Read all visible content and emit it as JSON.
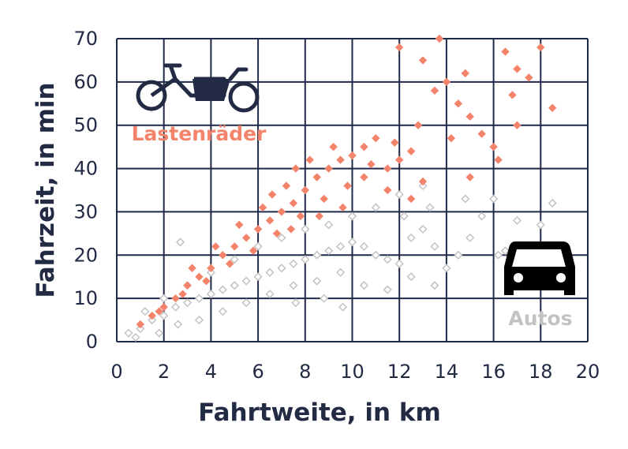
{
  "chart_data": {
    "type": "scatter",
    "title": "",
    "xlabel": "Fahrtweite, in km",
    "ylabel": "Fahrzeit, in min",
    "xlim": [
      0,
      20
    ],
    "ylim": [
      0,
      70
    ],
    "x_ticks": [
      0,
      2,
      4,
      6,
      8,
      10,
      12,
      14,
      16,
      18,
      20
    ],
    "y_ticks": [
      0,
      10,
      20,
      30,
      40,
      50,
      60,
      70
    ],
    "grid": true,
    "legend": "inline labels with icons (cargo bike top-left, car right)",
    "series": [
      {
        "name": "Lastenräder",
        "color": "#f4836b",
        "marker": "filled-diamond",
        "icon": "cargo-bike-icon",
        "points": [
          [
            1.0,
            4
          ],
          [
            1.5,
            6
          ],
          [
            2.0,
            8
          ],
          [
            2.5,
            10
          ],
          [
            3.0,
            13
          ],
          [
            3.5,
            15
          ],
          [
            4.0,
            17
          ],
          [
            4.5,
            20
          ],
          [
            5.0,
            22
          ],
          [
            5.5,
            24
          ],
          [
            6.0,
            26
          ],
          [
            6.5,
            28
          ],
          [
            7.0,
            30
          ],
          [
            7.5,
            32
          ],
          [
            8.0,
            35
          ],
          [
            8.5,
            38
          ],
          [
            9.0,
            40
          ],
          [
            9.5,
            42
          ],
          [
            10.0,
            43
          ],
          [
            10.5,
            45
          ],
          [
            11.0,
            47
          ],
          [
            11.5,
            40
          ],
          [
            12.0,
            42
          ],
          [
            12.5,
            44
          ],
          [
            12.0,
            68
          ],
          [
            13.0,
            65
          ],
          [
            13.7,
            70
          ],
          [
            14.0,
            60
          ],
          [
            14.5,
            55
          ],
          [
            15.0,
            52
          ],
          [
            15.5,
            48
          ],
          [
            16.0,
            45
          ],
          [
            16.5,
            67
          ],
          [
            17.0,
            63
          ],
          [
            17.5,
            61
          ],
          [
            18.0,
            68
          ],
          [
            18.5,
            54
          ],
          [
            13.5,
            58
          ],
          [
            14.8,
            62
          ],
          [
            16.2,
            42
          ],
          [
            10.5,
            38
          ],
          [
            9.8,
            36
          ],
          [
            8.8,
            33
          ],
          [
            7.8,
            29
          ],
          [
            6.8,
            25
          ],
          [
            5.8,
            21
          ],
          [
            4.8,
            18
          ],
          [
            3.8,
            14
          ],
          [
            2.8,
            11
          ],
          [
            1.8,
            7
          ],
          [
            5.2,
            27
          ],
          [
            6.2,
            31
          ],
          [
            7.2,
            36
          ],
          [
            8.2,
            42
          ],
          [
            9.2,
            45
          ],
          [
            7.6,
            40
          ],
          [
            11.5,
            35
          ],
          [
            12.5,
            33
          ],
          [
            13.0,
            37
          ],
          [
            15.0,
            38
          ],
          [
            12.8,
            50
          ],
          [
            14.2,
            47
          ],
          [
            17.0,
            50
          ],
          [
            16.8,
            57
          ],
          [
            6.6,
            34
          ],
          [
            7.4,
            26
          ],
          [
            8.6,
            29
          ],
          [
            9.6,
            31
          ],
          [
            4.2,
            22
          ],
          [
            3.2,
            17
          ],
          [
            10.8,
            41
          ],
          [
            11.8,
            46
          ]
        ]
      },
      {
        "name": "Autos",
        "color": "#c3c3c3",
        "marker": "hollow-diamond",
        "icon": "car-icon",
        "points": [
          [
            0.5,
            2
          ],
          [
            1.0,
            3
          ],
          [
            1.5,
            5
          ],
          [
            2.0,
            6
          ],
          [
            2.5,
            8
          ],
          [
            3.0,
            9
          ],
          [
            3.5,
            10
          ],
          [
            4.0,
            11
          ],
          [
            4.5,
            12
          ],
          [
            5.0,
            13
          ],
          [
            5.5,
            14
          ],
          [
            6.0,
            15
          ],
          [
            6.5,
            16
          ],
          [
            7.0,
            17
          ],
          [
            7.5,
            18
          ],
          [
            8.0,
            19
          ],
          [
            8.5,
            20
          ],
          [
            9.0,
            21
          ],
          [
            9.5,
            22
          ],
          [
            10.0,
            23
          ],
          [
            10.5,
            22
          ],
          [
            11.0,
            20
          ],
          [
            11.5,
            19
          ],
          [
            12.0,
            18
          ],
          [
            12.5,
            24
          ],
          [
            13.0,
            26
          ],
          [
            13.5,
            22
          ],
          [
            14.0,
            17
          ],
          [
            14.5,
            20
          ],
          [
            15.0,
            24
          ],
          [
            15.5,
            29
          ],
          [
            16.0,
            33
          ],
          [
            16.5,
            21
          ],
          [
            17.0,
            28
          ],
          [
            18.0,
            27
          ],
          [
            18.5,
            32
          ],
          [
            2.7,
            23
          ],
          [
            3.5,
            5
          ],
          [
            4.5,
            7
          ],
          [
            5.5,
            9
          ],
          [
            6.5,
            11
          ],
          [
            7.5,
            13
          ],
          [
            8.5,
            14
          ],
          [
            9.5,
            16
          ],
          [
            10.5,
            13
          ],
          [
            11.5,
            12
          ],
          [
            12.5,
            15
          ],
          [
            13.5,
            13
          ],
          [
            6.0,
            22
          ],
          [
            7.0,
            24
          ],
          [
            8.0,
            26
          ],
          [
            9.0,
            27
          ],
          [
            10.0,
            29
          ],
          [
            11.0,
            31
          ],
          [
            12.0,
            34
          ],
          [
            13.0,
            36
          ],
          [
            5.0,
            19
          ],
          [
            4.0,
            16
          ],
          [
            3.0,
            13
          ],
          [
            2.0,
            10
          ],
          [
            1.2,
            7
          ],
          [
            0.8,
            1
          ],
          [
            1.8,
            2
          ],
          [
            2.6,
            4
          ],
          [
            9.6,
            8
          ],
          [
            8.8,
            10
          ],
          [
            7.6,
            9
          ],
          [
            16.2,
            20
          ],
          [
            17.5,
            22
          ],
          [
            14.8,
            33
          ],
          [
            13.3,
            31
          ],
          [
            12.2,
            29
          ]
        ]
      }
    ]
  }
}
